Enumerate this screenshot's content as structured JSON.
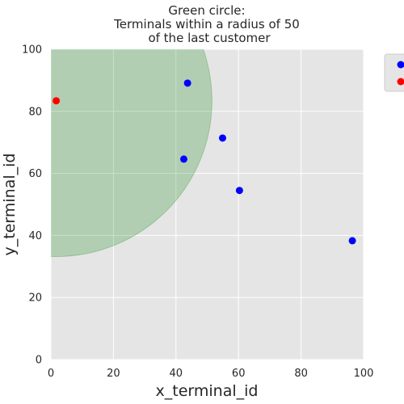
{
  "chart_data": {
    "type": "scatter",
    "title_lines": [
      "Green circle:",
      "Terminals within a radius of 50",
      "of the last customer"
    ],
    "xlabel": "x_terminal_id",
    "ylabel": "y_terminal_id",
    "xlim": [
      0,
      100
    ],
    "ylim": [
      0,
      100
    ],
    "xticks": [
      0,
      20,
      40,
      60,
      80,
      100
    ],
    "yticks": [
      0,
      20,
      40,
      60,
      80,
      100
    ],
    "grid": true,
    "legend_placement": "upper-right-outside",
    "series": [
      {
        "color": "#0000ff",
        "points": [
          {
            "x": 43.7,
            "y": 89.1
          },
          {
            "x": 54.9,
            "y": 71.4
          },
          {
            "x": 42.5,
            "y": 64.6
          },
          {
            "x": 60.3,
            "y": 54.5
          },
          {
            "x": 96.4,
            "y": 38.3
          }
        ]
      },
      {
        "color": "#ff0000",
        "points": [
          {
            "x": 1.7,
            "y": 83.4
          }
        ]
      }
    ],
    "radius_circle": {
      "center": {
        "x": 1.7,
        "y": 83.4
      },
      "radius": 50,
      "color": "#008000"
    }
  }
}
